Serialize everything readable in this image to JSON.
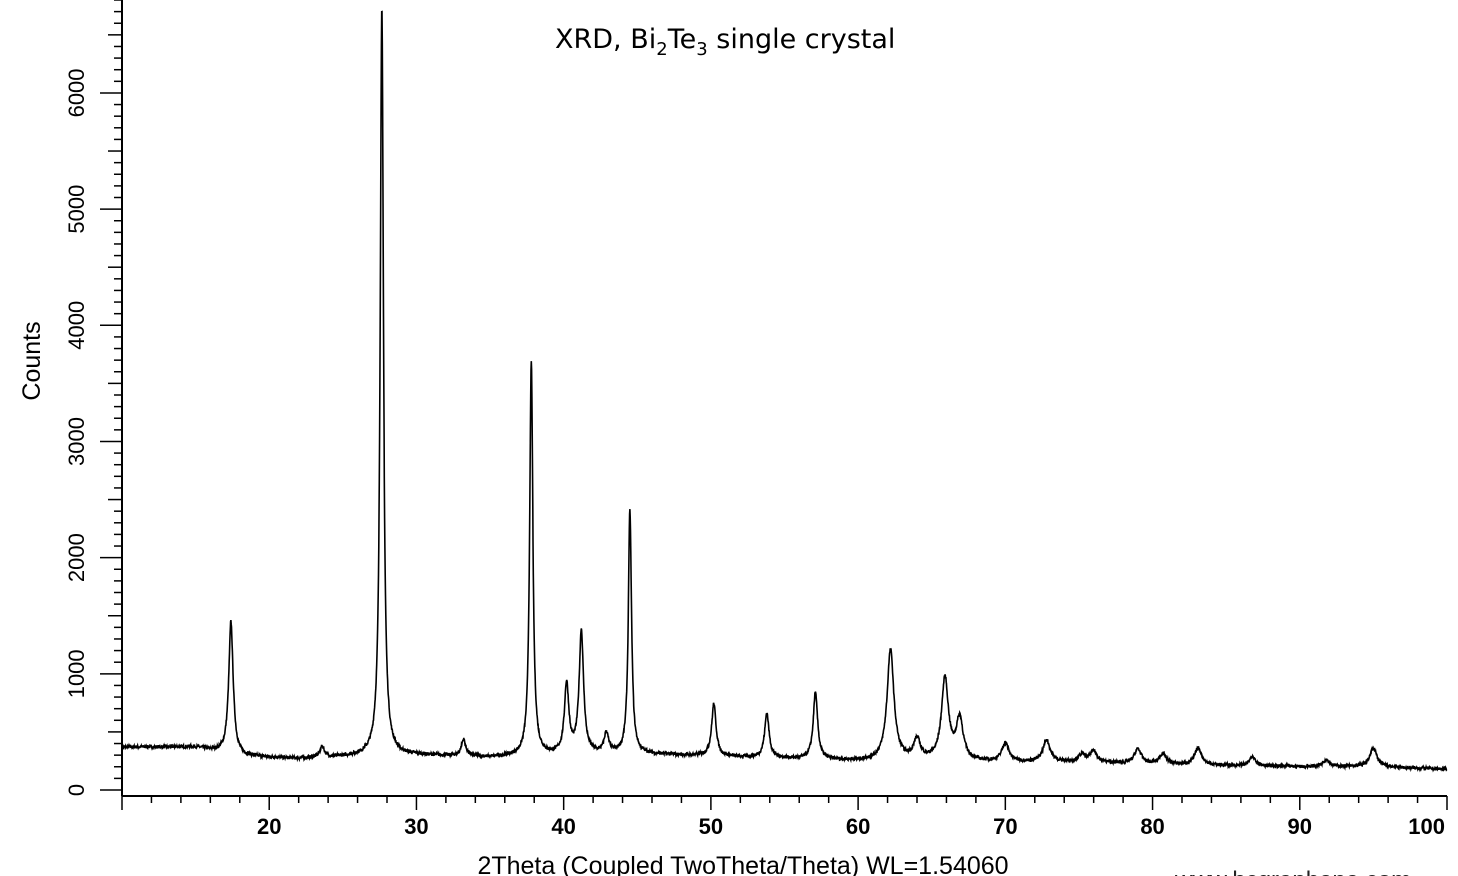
{
  "chart_data": {
    "type": "line",
    "title_parts": [
      "XRD, Bi",
      "2",
      "Te",
      "3",
      " single crystal"
    ],
    "xlabel": "2Theta (Coupled TwoTheta/Theta) WL=1.54060",
    "ylabel": "Counts",
    "xlim": [
      10,
      100
    ],
    "ylim": [
      0,
      6800
    ],
    "xticks": [
      20,
      30,
      40,
      50,
      60,
      70,
      80,
      90,
      100
    ],
    "yticks": [
      0,
      1000,
      2000,
      3000,
      4000,
      5000,
      6000
    ],
    "grid": false,
    "line_color": "#000000",
    "background": [
      [
        10,
        370
      ],
      [
        15,
        370
      ],
      [
        18,
        290
      ],
      [
        22,
        270
      ],
      [
        26,
        290
      ],
      [
        30,
        300
      ],
      [
        35,
        280
      ],
      [
        40,
        300
      ],
      [
        45,
        310
      ],
      [
        50,
        290
      ],
      [
        55,
        270
      ],
      [
        60,
        250
      ],
      [
        65,
        250
      ],
      [
        70,
        240
      ],
      [
        75,
        240
      ],
      [
        80,
        220
      ],
      [
        85,
        210
      ],
      [
        90,
        200
      ],
      [
        95,
        200
      ],
      [
        100,
        180
      ]
    ],
    "peaks": [
      {
        "x": 17.4,
        "y": 1450
      },
      {
        "x": 23.6,
        "y": 370
      },
      {
        "x": 27.65,
        "y": 6750
      },
      {
        "x": 33.2,
        "y": 430
      },
      {
        "x": 37.8,
        "y": 3680
      },
      {
        "x": 40.2,
        "y": 900
      },
      {
        "x": 41.2,
        "y": 1360
      },
      {
        "x": 42.9,
        "y": 480
      },
      {
        "x": 44.5,
        "y": 2400
      },
      {
        "x": 50.2,
        "y": 740
      },
      {
        "x": 53.8,
        "y": 660
      },
      {
        "x": 57.1,
        "y": 830
      },
      {
        "x": 62.2,
        "y": 1200
      },
      {
        "x": 64.0,
        "y": 420
      },
      {
        "x": 65.9,
        "y": 950
      },
      {
        "x": 66.9,
        "y": 600
      },
      {
        "x": 70.0,
        "y": 400
      },
      {
        "x": 72.8,
        "y": 430
      },
      {
        "x": 75.2,
        "y": 300
      },
      {
        "x": 76.0,
        "y": 330
      },
      {
        "x": 79.0,
        "y": 350
      },
      {
        "x": 80.7,
        "y": 310
      },
      {
        "x": 83.1,
        "y": 360
      },
      {
        "x": 86.8,
        "y": 280
      },
      {
        "x": 91.8,
        "y": 260
      },
      {
        "x": 95.0,
        "y": 360
      }
    ]
  },
  "watermark": "www.bcgraphene.com"
}
